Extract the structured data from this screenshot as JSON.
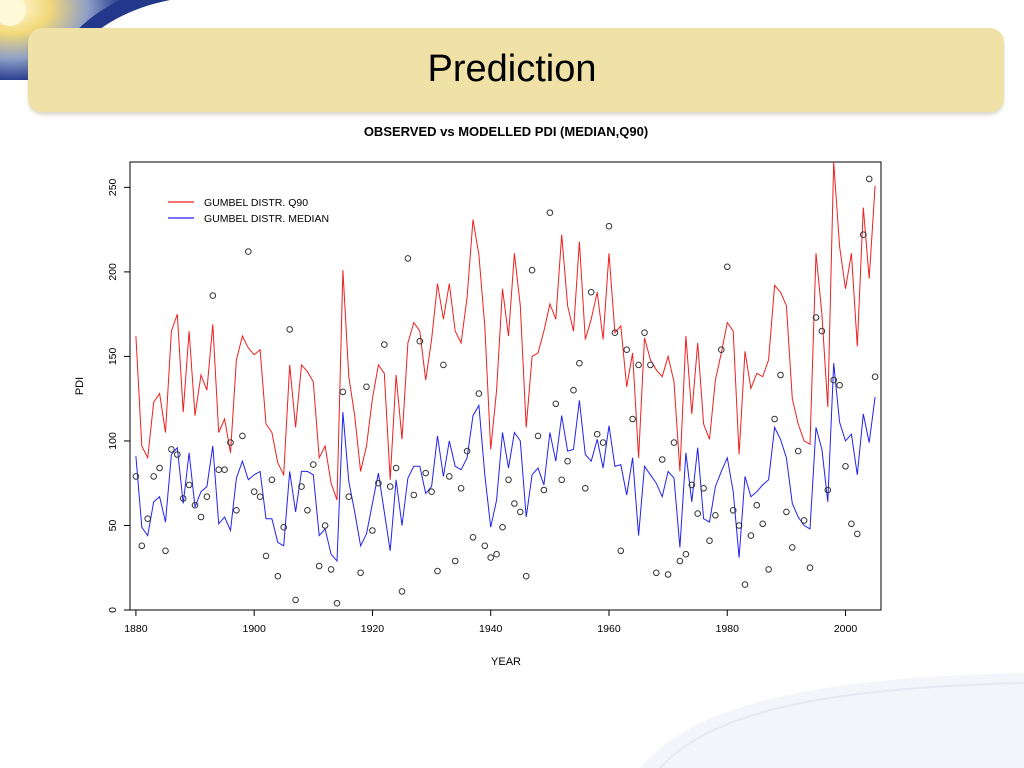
{
  "slide": {
    "title": "Prediction"
  },
  "chart_data": {
    "type": "line",
    "title": "OBSERVED vs MODELLED PDI (MEDIAN,Q90)",
    "xlabel": "YEAR",
    "ylabel": "PDI",
    "xlim": [
      1879,
      2006
    ],
    "ylim": [
      0,
      265
    ],
    "xticks": [
      1880,
      1900,
      1920,
      1940,
      1960,
      1980,
      2000
    ],
    "yticks": [
      0,
      50,
      100,
      150,
      200,
      250
    ],
    "legend_position": "top-left",
    "x": [
      1880,
      1881,
      1882,
      1883,
      1884,
      1885,
      1886,
      1887,
      1888,
      1889,
      1890,
      1891,
      1892,
      1893,
      1894,
      1895,
      1896,
      1897,
      1898,
      1899,
      1900,
      1901,
      1902,
      1903,
      1904,
      1905,
      1906,
      1907,
      1908,
      1909,
      1910,
      1911,
      1912,
      1913,
      1914,
      1915,
      1916,
      1917,
      1918,
      1919,
      1920,
      1921,
      1922,
      1923,
      1924,
      1925,
      1926,
      1927,
      1928,
      1929,
      1930,
      1931,
      1932,
      1933,
      1934,
      1935,
      1936,
      1937,
      1938,
      1939,
      1940,
      1941,
      1942,
      1943,
      1944,
      1945,
      1946,
      1947,
      1948,
      1949,
      1950,
      1951,
      1952,
      1953,
      1954,
      1955,
      1956,
      1957,
      1958,
      1959,
      1960,
      1961,
      1962,
      1963,
      1964,
      1965,
      1966,
      1967,
      1968,
      1969,
      1970,
      1971,
      1972,
      1973,
      1974,
      1975,
      1976,
      1977,
      1978,
      1979,
      1980,
      1981,
      1982,
      1983,
      1984,
      1985,
      1986,
      1987,
      1988,
      1989,
      1990,
      1991,
      1992,
      1993,
      1994,
      1995,
      1996,
      1997,
      1998,
      1999,
      2000,
      2001,
      2002,
      2003,
      2004,
      2005
    ],
    "series": [
      {
        "name": "GUMBEL DISTR. Q90",
        "color": "#ee2020",
        "values": [
          162,
          97,
          90,
          123,
          128,
          105,
          165,
          175,
          117,
          165,
          115,
          139,
          130,
          169,
          105,
          113,
          93,
          148,
          162,
          155,
          151,
          154,
          110,
          105,
          87,
          80,
          145,
          108,
          145,
          141,
          135,
          90,
          97,
          75,
          65,
          201,
          138,
          115,
          82,
          97,
          125,
          145,
          140,
          77,
          139,
          101,
          158,
          170,
          165,
          136,
          160,
          193,
          172,
          193,
          165,
          158,
          185,
          231,
          210,
          168,
          95,
          130,
          190,
          162,
          211,
          180,
          108,
          150,
          152,
          165,
          181,
          172,
          222,
          180,
          165,
          218,
          160,
          172,
          188,
          160,
          211,
          164,
          168,
          132,
          152,
          90,
          161,
          148,
          142,
          138,
          150,
          135,
          82,
          162,
          116,
          158,
          110,
          101,
          136,
          152,
          170,
          165,
          92,
          153,
          131,
          140,
          138,
          148,
          192,
          188,
          180,
          125,
          110,
          100,
          98,
          211,
          175,
          120,
          265,
          215,
          190,
          211,
          156,
          238,
          196,
          251
        ]
      },
      {
        "name": "GUMBEL DISTR. MEDIAN",
        "color": "#2222ee",
        "values": [
          91,
          49,
          44,
          64,
          67,
          52,
          92,
          96,
          63,
          93,
          61,
          70,
          73,
          97,
          51,
          55,
          47,
          78,
          88,
          77,
          80,
          82,
          54,
          54,
          40,
          38,
          82,
          58,
          82,
          82,
          80,
          44,
          48,
          33,
          29,
          117,
          76,
          58,
          38,
          45,
          63,
          81,
          58,
          35,
          77,
          50,
          78,
          85,
          85,
          69,
          73,
          103,
          79,
          100,
          85,
          83,
          90,
          115,
          121,
          80,
          49,
          65,
          105,
          84,
          105,
          100,
          55,
          80,
          84,
          74,
          105,
          88,
          115,
          94,
          95,
          124,
          92,
          88,
          101,
          84,
          109,
          85,
          86,
          68,
          90,
          44,
          85,
          80,
          75,
          67,
          82,
          78,
          37,
          93,
          64,
          96,
          54,
          52,
          73,
          82,
          90,
          70,
          31,
          79,
          67,
          70,
          74,
          77,
          108,
          101,
          90,
          63,
          55,
          50,
          48,
          108,
          95,
          64,
          146,
          111,
          100,
          104,
          80,
          116,
          99,
          126
        ]
      },
      {
        "name": "OBSERVED",
        "type": "scatter",
        "color": "#333333",
        "values": [
          79,
          38,
          54,
          79,
          84,
          35,
          95,
          92,
          66,
          74,
          62,
          55,
          67,
          186,
          83,
          83,
          99,
          59,
          103,
          212,
          70,
          67,
          32,
          77,
          20,
          49,
          166,
          6,
          73,
          59,
          86,
          26,
          50,
          24,
          4,
          129,
          67,
          null,
          22,
          132,
          47,
          75,
          157,
          73,
          84,
          11,
          208,
          68,
          159,
          81,
          70,
          23,
          145,
          79,
          29,
          72,
          94,
          43,
          128,
          38,
          31,
          33,
          49,
          77,
          63,
          58,
          20,
          201,
          103,
          71,
          235,
          122,
          77,
          88,
          130,
          146,
          72,
          188,
          104,
          99,
          227,
          164,
          35,
          154,
          113,
          145,
          164,
          145,
          22,
          89,
          21,
          99,
          29,
          33,
          74,
          57,
          72,
          41,
          56,
          154,
          203,
          59,
          50,
          15,
          44,
          62,
          51,
          24,
          113,
          139,
          58,
          37,
          94,
          53,
          25,
          173,
          165,
          71,
          136,
          133,
          85,
          51,
          45,
          222,
          255,
          138
        ]
      }
    ]
  }
}
